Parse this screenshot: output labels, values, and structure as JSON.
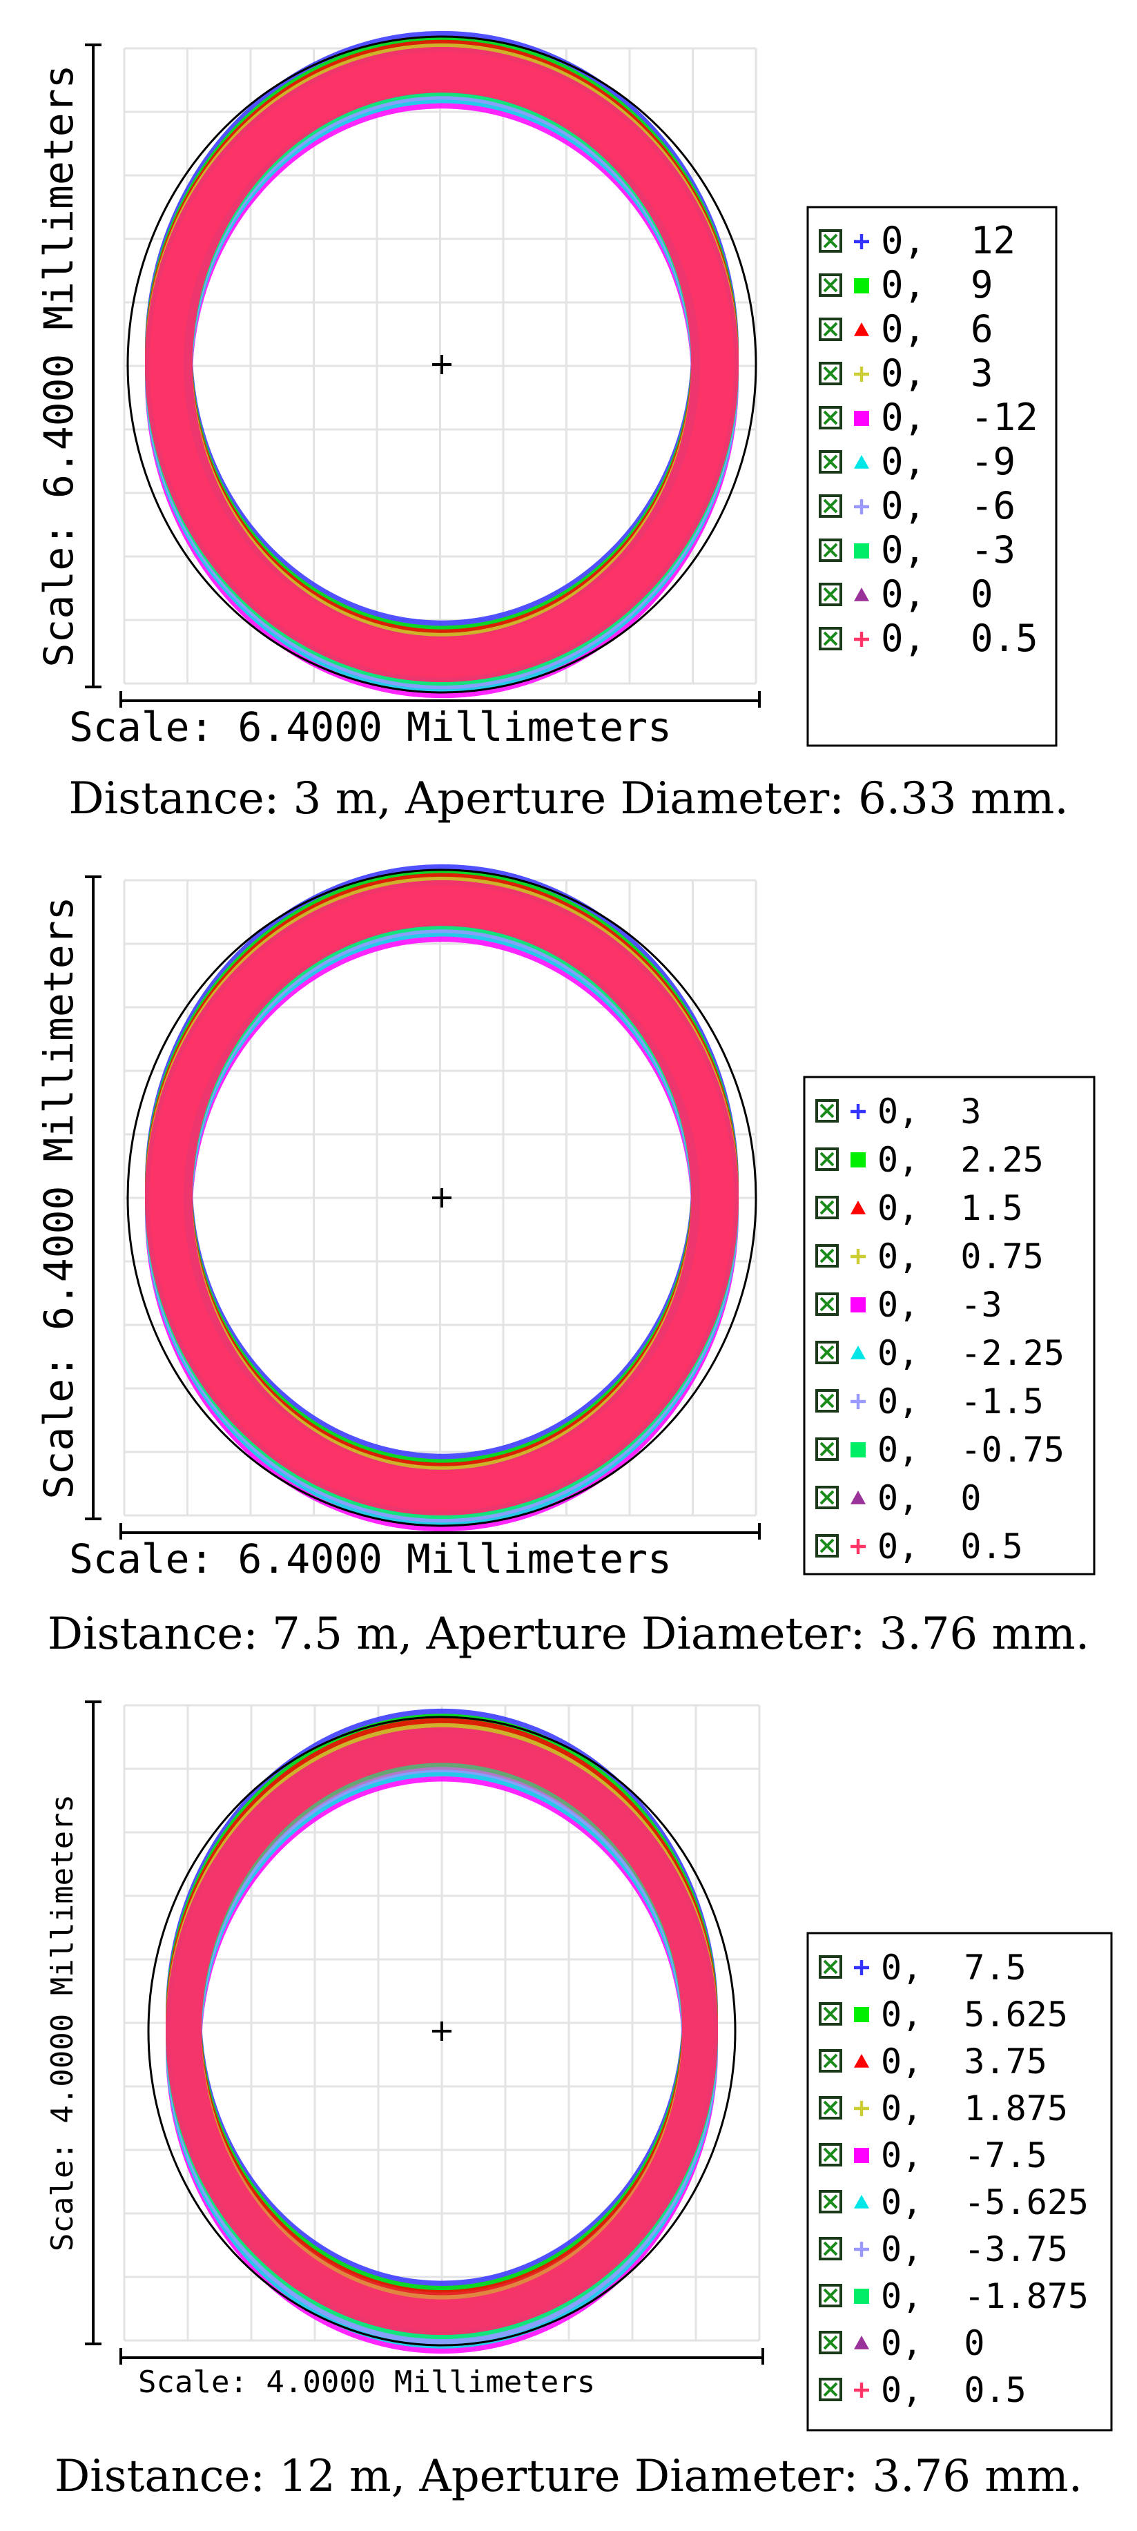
{
  "chart_data": [
    {
      "type": "scatter",
      "ylabel": "Scale: 6.4000 Millimeters",
      "xlabel": "Scale: 6.4000 Millimeters",
      "caption": "Distance: 3 m, Aperture Diameter: 6.33 mm.",
      "legend_placement": "right",
      "grid": true,
      "series": [
        {
          "name": "0,  12",
          "color": "#3333ff",
          "marker": "plus",
          "ring_offset": 0.18
        },
        {
          "name": "0,  9",
          "color": "#00ee00",
          "marker": "square",
          "ring_offset": 0.12
        },
        {
          "name": "0,  6",
          "color": "#ff0000",
          "marker": "triangle",
          "ring_offset": 0.08
        },
        {
          "name": "0,  3",
          "color": "#cccc33",
          "marker": "plus",
          "ring_offset": 0.04
        },
        {
          "name": "0,  -12",
          "color": "#ff00ff",
          "marker": "square",
          "ring_offset": -0.18
        },
        {
          "name": "0,  -9",
          "color": "#00e6e6",
          "marker": "triangle",
          "ring_offset": -0.12
        },
        {
          "name": "0,  -6",
          "color": "#9999ff",
          "marker": "plus",
          "ring_offset": -0.08
        },
        {
          "name": "0,  -3",
          "color": "#00ee66",
          "marker": "square",
          "ring_offset": -0.04
        },
        {
          "name": "0,  0",
          "color": "#993399",
          "marker": "triangle",
          "ring_offset": 0.0
        },
        {
          "name": "0,  0.5",
          "color": "#ff3366",
          "marker": "plus",
          "ring_offset": 0.0
        }
      ]
    },
    {
      "type": "scatter",
      "ylabel": "Scale: 6.4000 Millimeters",
      "xlabel": "Scale: 6.4000 Millimeters",
      "caption": "Distance: 7.5 m, Aperture Diameter: 3.76 mm.",
      "legend_placement": "right",
      "grid": true,
      "series": [
        {
          "name": "0,  3",
          "color": "#3333ff",
          "marker": "plus",
          "ring_offset": 0.18
        },
        {
          "name": "0,  2.25",
          "color": "#00ee00",
          "marker": "square",
          "ring_offset": 0.12
        },
        {
          "name": "0,  1.5",
          "color": "#ff0000",
          "marker": "triangle",
          "ring_offset": 0.08
        },
        {
          "name": "0,  0.75",
          "color": "#cccc33",
          "marker": "plus",
          "ring_offset": 0.04
        },
        {
          "name": "0,  -3",
          "color": "#ff00ff",
          "marker": "square",
          "ring_offset": -0.18
        },
        {
          "name": "0,  -2.25",
          "color": "#00e6e6",
          "marker": "triangle",
          "ring_offset": -0.12
        },
        {
          "name": "0,  -1.5",
          "color": "#9999ff",
          "marker": "plus",
          "ring_offset": -0.08
        },
        {
          "name": "0,  -0.75",
          "color": "#00ee66",
          "marker": "square",
          "ring_offset": -0.04
        },
        {
          "name": "0,  0",
          "color": "#993399",
          "marker": "triangle",
          "ring_offset": 0.0
        },
        {
          "name": "0,  0.5",
          "color": "#ff3366",
          "marker": "plus",
          "ring_offset": 0.0
        }
      ]
    },
    {
      "type": "scatter",
      "ylabel": "Scale: 4.0000 Millimeters",
      "xlabel": "Scale: 4.0000 Millimeters",
      "caption": "Distance: 12 m, Aperture Diameter: 3.76 mm.",
      "legend_placement": "right",
      "grid": true,
      "series": [
        {
          "name": "0,  7.5",
          "color": "#3333ff",
          "marker": "plus",
          "ring_offset": 0.22
        },
        {
          "name": "0,  5.625",
          "color": "#00ee00",
          "marker": "square",
          "ring_offset": 0.16
        },
        {
          "name": "0,  3.75",
          "color": "#ff0000",
          "marker": "triangle",
          "ring_offset": 0.11
        },
        {
          "name": "0,  1.875",
          "color": "#cccc33",
          "marker": "plus",
          "ring_offset": 0.05
        },
        {
          "name": "0,  -7.5",
          "color": "#ff00ff",
          "marker": "square",
          "ring_offset": -0.22
        },
        {
          "name": "0,  -5.625",
          "color": "#00e6e6",
          "marker": "triangle",
          "ring_offset": -0.16
        },
        {
          "name": "0,  -3.75",
          "color": "#9999ff",
          "marker": "plus",
          "ring_offset": -0.11
        },
        {
          "name": "0,  -1.875",
          "color": "#00ee66",
          "marker": "square",
          "ring_offset": -0.05
        },
        {
          "name": "0,  0",
          "color": "#993399",
          "marker": "triangle",
          "ring_offset": 0.0
        },
        {
          "name": "0,  0.5",
          "color": "#ff3366",
          "marker": "plus",
          "ring_offset": 0.0
        }
      ]
    }
  ]
}
